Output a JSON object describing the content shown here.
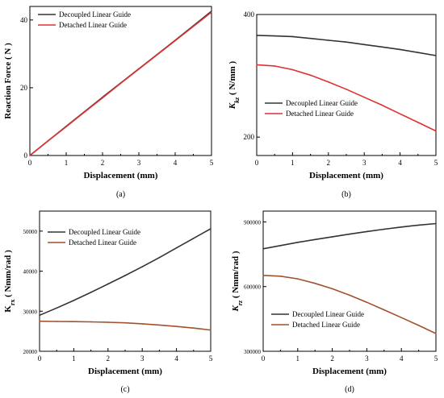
{
  "chart_data": [
    {
      "type": "line",
      "caption": "(a)",
      "title": "",
      "xlabel": "Displacement (mm)",
      "ylabel": "Reaction Force ( N )",
      "ylabel_parts": [
        {
          "t": "Reaction Force ( N )"
        }
      ],
      "xlim": [
        0,
        5
      ],
      "ylim": [
        0,
        44
      ],
      "xticks": [
        0,
        1,
        2,
        3,
        4,
        5
      ],
      "yticks": [
        0,
        20,
        40
      ],
      "x": [
        0,
        0.5,
        1,
        1.5,
        2,
        2.5,
        3,
        3.5,
        4,
        4.5,
        5
      ],
      "legend_position": "top-left",
      "series": [
        {
          "name": "Decoupled Linear Guide",
          "color": "#333333",
          "values": [
            0,
            4.3,
            8.6,
            12.9,
            17.2,
            21.4,
            25.6,
            29.8,
            34.0,
            38.3,
            42.6
          ]
        },
        {
          "name": "Detached Linear Guide",
          "color": "#e03030",
          "values": [
            0,
            4.3,
            8.5,
            12.8,
            17.0,
            21.3,
            25.5,
            29.7,
            33.9,
            38.1,
            42.3
          ]
        }
      ]
    },
    {
      "type": "line",
      "caption": "(b)",
      "title": "",
      "xlabel": "Displacement (mm)",
      "ylabel": "Kkz ( N/mm )",
      "ylabel_parts": [
        {
          "t": "K",
          "i": true
        },
        {
          "t": "kz",
          "i": true,
          "sub": true
        },
        {
          "t": " ( N/mm )"
        }
      ],
      "xlim": [
        0,
        5
      ],
      "ylim": [
        170,
        400
      ],
      "xticks": [
        0,
        1,
        2,
        3,
        4,
        5
      ],
      "yticks": [
        200,
        400
      ],
      "x": [
        0,
        0.5,
        1,
        1.5,
        2,
        2.5,
        3,
        3.5,
        4,
        4.5,
        5
      ],
      "legend_position": "center-right",
      "series": [
        {
          "name": "Decoupled Linear Guide",
          "color": "#333333",
          "values": [
            366,
            365,
            364,
            361,
            358,
            355,
            351,
            347,
            343,
            338,
            333
          ]
        },
        {
          "name": "Detached Linear Guide",
          "color": "#e03030",
          "values": [
            318,
            316,
            310,
            301,
            290,
            278,
            265,
            252,
            238,
            224,
            210
          ]
        }
      ]
    },
    {
      "type": "line",
      "caption": "(c)",
      "title": "",
      "xlabel": "Displacement (mm)",
      "ylabel": "Krx ( Nmm/rad )",
      "ylabel_parts": [
        {
          "t": "K"
        },
        {
          "t": "rx",
          "sub": true
        },
        {
          "t": " ( Nmm/rad )"
        }
      ],
      "xlim": [
        0,
        5
      ],
      "ylim": [
        20000,
        55000
      ],
      "xticks": [
        0,
        1,
        2,
        3,
        4,
        5
      ],
      "yticks": [
        20000,
        30000,
        40000,
        50000
      ],
      "x": [
        0,
        0.5,
        1,
        1.5,
        2,
        2.5,
        3,
        3.5,
        4,
        4.5,
        5
      ],
      "legend_position": "top-left",
      "series": [
        {
          "name": "Decoupled Linear Guide",
          "color": "#333333",
          "values": [
            29000,
            30800,
            32700,
            34700,
            36800,
            38900,
            41100,
            43400,
            45800,
            48200,
            50600
          ]
        },
        {
          "name": "Detached Linear Guide",
          "color": "#a0522d",
          "values": [
            27500,
            27450,
            27400,
            27350,
            27250,
            27100,
            26850,
            26550,
            26200,
            25800,
            25300
          ]
        }
      ]
    },
    {
      "type": "line",
      "caption": "(d)",
      "title": "",
      "xlabel": "Displacement (mm)",
      "ylabel": "Krz ( Nmm/rad )",
      "ylabel_parts": [
        {
          "t": "K",
          "i": true
        },
        {
          "t": "rz",
          "i": true,
          "sub": true
        },
        {
          "t": " ( Nmm/rad )"
        }
      ],
      "xlim": [
        0,
        5
      ],
      "ylim": [
        300000,
        950000
      ],
      "xticks": [
        0,
        1,
        2,
        3,
        4,
        5
      ],
      "yticks": [
        300000,
        600000,
        900000
      ],
      "x": [
        0,
        0.5,
        1,
        1.5,
        2,
        2.5,
        3,
        3.5,
        4,
        4.5,
        5
      ],
      "legend_position": "bottom-left",
      "series": [
        {
          "name": "Decoupled Linear Guide",
          "color": "#333333",
          "values": [
            775000,
            790000,
            805000,
            818000,
            831000,
            843000,
            855000,
            866000,
            876000,
            885000,
            892000
          ]
        },
        {
          "name": "Detached Linear Guide",
          "color": "#a0522d",
          "values": [
            652000,
            648000,
            636000,
            615000,
            590000,
            560000,
            527000,
            492000,
            456000,
            420000,
            382000
          ]
        }
      ]
    }
  ]
}
